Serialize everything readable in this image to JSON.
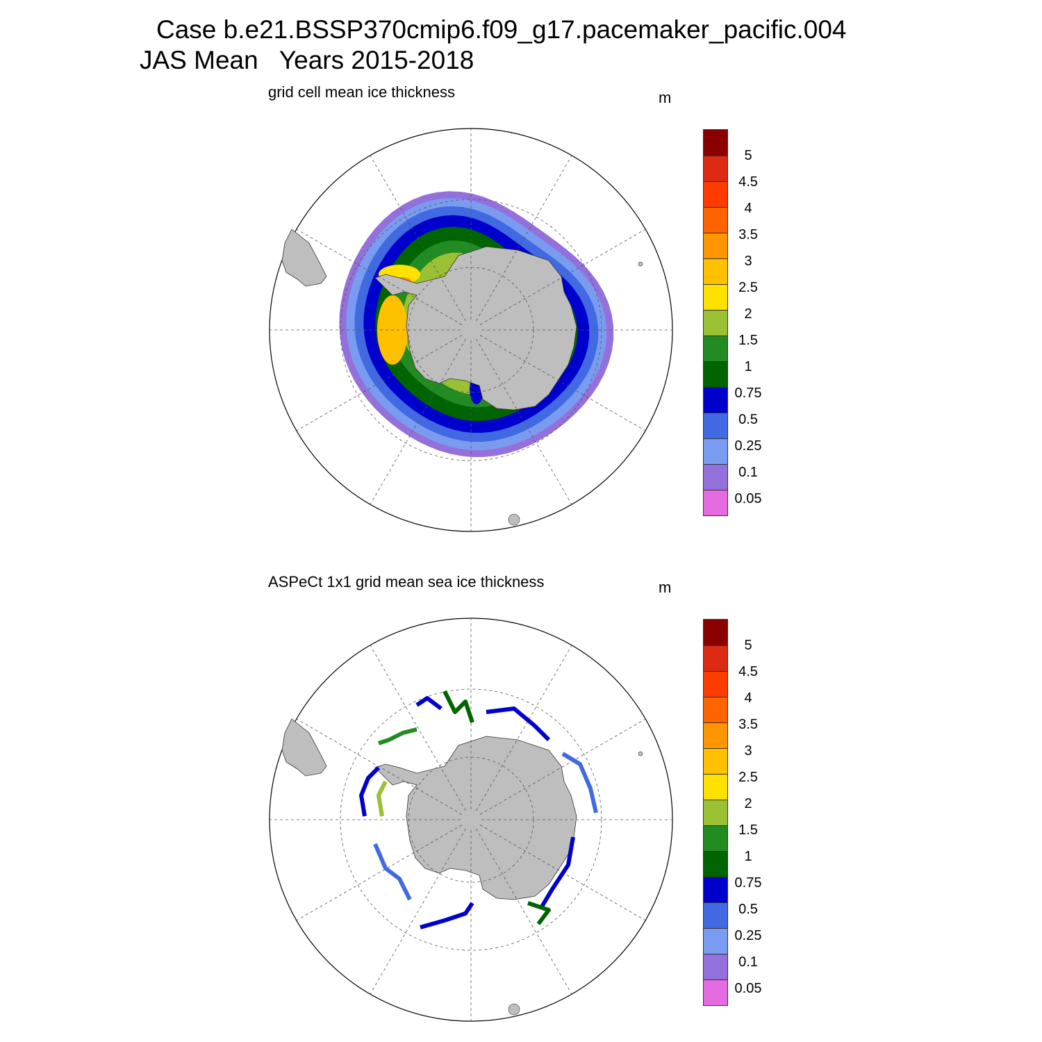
{
  "figure": {
    "title_line1": "Case b.e21.BSSP370cmip6.f09_g17.pacemaker_pacific.004",
    "title_line2": "JAS Mean   Years 2015-2018"
  },
  "panels": [
    {
      "subtitle": "grid cell mean ice thickness",
      "units": "m",
      "field": "model ice thickness (filled, circumpolar band)"
    },
    {
      "subtitle": "ASPeCt 1x1 grid mean sea ice thickness",
      "units": "m",
      "field": "ship-track observations"
    }
  ],
  "colorbar": {
    "levels": [
      "5",
      "4.5",
      "4",
      "3.5",
      "3",
      "2.5",
      "2",
      "1.5",
      "1",
      "0.75",
      "0.5",
      "0.25",
      "0.1",
      "0.05"
    ],
    "colors": [
      "#8b0000",
      "#dc2a14",
      "#ff3c00",
      "#ff6400",
      "#ff9600",
      "#ffc000",
      "#ffe100",
      "#9ac033",
      "#228b22",
      "#006400",
      "#0000cd",
      "#4169e1",
      "#7a9cf0",
      "#9370db",
      "#e56be0"
    ]
  },
  "map_colors": {
    "land": "#bebebe",
    "grid": "#555555"
  }
}
